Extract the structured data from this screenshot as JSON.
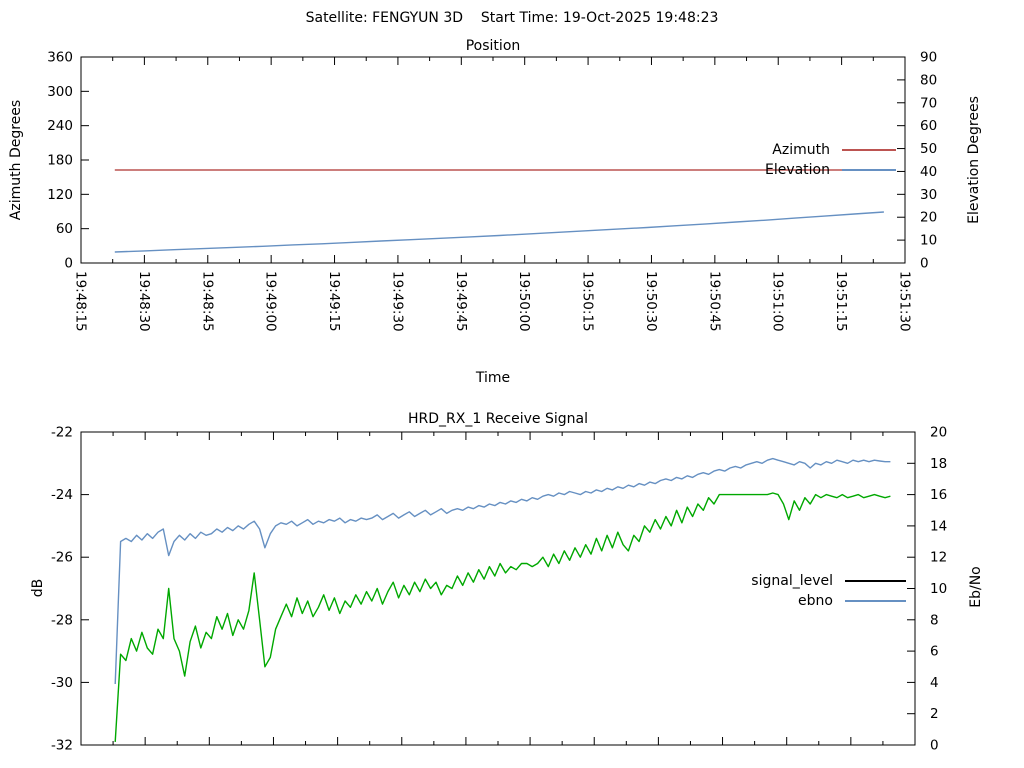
{
  "header": {
    "title": "Satellite: FENGYUN 3D    Start Time: 19-Oct-2025 19:48:23"
  },
  "colors": {
    "background": "#ffffff",
    "frame": "#000000",
    "azimuth_red": "#bc5451",
    "elevation_blue": "#6690c2",
    "signal_green": "#00a800",
    "legend_black": "#000000"
  },
  "chart_data": [
    {
      "type": "line",
      "title": "Position",
      "xlabel": "Time",
      "ylabel_left": "Azimuth Degrees",
      "ylabel_right": "Elevation Degrees",
      "x_range_seconds": [
        0,
        195
      ],
      "x_tick_interval_seconds": 15,
      "x_ticks": [
        "19:48:15",
        "19:48:30",
        "19:48:45",
        "19:49:00",
        "19:49:15",
        "19:49:30",
        "19:49:45",
        "19:50:00",
        "19:50:15",
        "19:50:30",
        "19:50:45",
        "19:51:00",
        "19:51:15",
        "19:51:30"
      ],
      "x_tick_labels_visible": true,
      "ylim_left": [
        0,
        360
      ],
      "yticks_left": [
        0,
        60,
        120,
        180,
        240,
        300,
        360
      ],
      "ylim_right": [
        0,
        90
      ],
      "yticks_right": [
        0,
        10,
        20,
        30,
        40,
        50,
        60,
        70,
        80,
        90
      ],
      "grid": false,
      "legend_position": "inside-right",
      "legend": [
        {
          "label": "Azimuth",
          "color": "#bc5451"
        },
        {
          "label": "Elevation",
          "color": "#6690c2"
        }
      ],
      "series": [
        {
          "name": "Azimuth",
          "axis": "left",
          "color": "#bc5451",
          "points": [
            [
              8,
              162.5
            ],
            [
              189.5,
              162.5
            ]
          ]
        },
        {
          "name": "Elevation",
          "axis": "right",
          "color": "#6690c2",
          "t0": 8,
          "dt": 7,
          "values": [
            4.8,
            5.3,
            5.8,
            6.3,
            6.8,
            7.3,
            7.9,
            8.4,
            9.0,
            9.6,
            10.2,
            10.8,
            11.4,
            12.0,
            12.7,
            13.4,
            14.1,
            14.8,
            15.5,
            16.3,
            17.1,
            17.9,
            18.7,
            19.6,
            20.5,
            21.4,
            22.3
          ]
        }
      ]
    },
    {
      "type": "line",
      "title": "HRD_RX_1 Receive Signal",
      "xlabel": "",
      "ylabel_left": "dB",
      "ylabel_right": "Eb/No",
      "x_range_seconds": [
        0,
        195
      ],
      "x_tick_interval_seconds": 15,
      "x_ticks": [
        "19:48:15",
        "19:48:30",
        "19:48:45",
        "19:49:00",
        "19:49:15",
        "19:49:30",
        "19:49:45",
        "19:50:00",
        "19:50:15",
        "19:50:30",
        "19:50:45",
        "19:51:00",
        "19:51:15",
        "19:51:30"
      ],
      "x_tick_labels_visible": false,
      "ylim_left": [
        -32,
        -22
      ],
      "yticks_left": [
        -22,
        -24,
        -26,
        -28,
        -30,
        -32
      ],
      "ylim_right": [
        0,
        20
      ],
      "yticks_right": [
        0,
        2,
        4,
        6,
        8,
        10,
        12,
        14,
        16,
        18,
        20
      ],
      "grid": false,
      "legend_position": "inside-right",
      "legend": [
        {
          "label": "signal_level",
          "color": "#000000"
        },
        {
          "label": "ebno",
          "color": "#6690c2"
        }
      ],
      "series": [
        {
          "name": "signal_level",
          "axis": "left",
          "color": "#00a800",
          "t0": 8,
          "dt": 1.25,
          "values": [
            -31.9,
            -29.1,
            -29.3,
            -28.6,
            -29.0,
            -28.4,
            -28.9,
            -29.1,
            -28.3,
            -28.6,
            -27.0,
            -28.6,
            -29.0,
            -29.8,
            -28.7,
            -28.2,
            -28.9,
            -28.4,
            -28.6,
            -27.9,
            -28.3,
            -27.8,
            -28.5,
            -28.0,
            -28.3,
            -27.7,
            -26.5,
            -28.0,
            -29.5,
            -29.2,
            -28.3,
            -27.9,
            -27.5,
            -27.9,
            -27.3,
            -27.8,
            -27.4,
            -27.9,
            -27.6,
            -27.2,
            -27.7,
            -27.3,
            -27.8,
            -27.4,
            -27.6,
            -27.2,
            -27.5,
            -27.1,
            -27.4,
            -27.0,
            -27.5,
            -27.1,
            -26.8,
            -27.3,
            -26.9,
            -27.2,
            -26.8,
            -27.1,
            -26.7,
            -27.0,
            -26.8,
            -27.2,
            -26.9,
            -27.0,
            -26.6,
            -26.9,
            -26.5,
            -26.8,
            -26.4,
            -26.7,
            -26.3,
            -26.6,
            -26.2,
            -26.5,
            -26.3,
            -26.4,
            -26.2,
            -26.2,
            -26.3,
            -26.2,
            -26.0,
            -26.3,
            -25.9,
            -26.2,
            -25.8,
            -26.1,
            -25.7,
            -26.0,
            -25.6,
            -25.9,
            -25.4,
            -25.8,
            -25.3,
            -25.7,
            -25.2,
            -25.6,
            -25.8,
            -25.3,
            -25.5,
            -25.0,
            -25.2,
            -24.8,
            -25.1,
            -24.7,
            -25.0,
            -24.5,
            -24.9,
            -24.4,
            -24.7,
            -24.3,
            -24.5,
            -24.1,
            -24.3,
            -24.0,
            -24.0,
            -24.0,
            -24.0,
            -24.0,
            -24.0,
            -24.0,
            -24.0,
            -24.0,
            -24.0,
            -23.95,
            -24.0,
            -24.3,
            -24.8,
            -24.2,
            -24.5,
            -24.1,
            -24.3,
            -24.0,
            -24.1,
            -24.0,
            -24.05,
            -24.1,
            -24.0,
            -24.1,
            -24.05,
            -24.0,
            -24.1,
            -24.05,
            -24.0,
            -24.05,
            -24.1,
            -24.05
          ]
        },
        {
          "name": "ebno",
          "axis": "right",
          "color": "#6690c2",
          "t0": 8,
          "dt": 1.25,
          "values": [
            3.9,
            13.0,
            13.2,
            13.0,
            13.4,
            13.1,
            13.5,
            13.2,
            13.6,
            13.8,
            12.1,
            13.0,
            13.4,
            13.1,
            13.5,
            13.2,
            13.6,
            13.4,
            13.5,
            13.8,
            13.6,
            13.9,
            13.7,
            14.0,
            13.8,
            14.1,
            14.3,
            13.8,
            12.6,
            13.5,
            14.0,
            14.2,
            14.1,
            14.3,
            14.0,
            14.2,
            14.4,
            14.1,
            14.3,
            14.2,
            14.4,
            14.3,
            14.5,
            14.2,
            14.4,
            14.3,
            14.5,
            14.4,
            14.5,
            14.7,
            14.4,
            14.6,
            14.8,
            14.5,
            14.7,
            14.9,
            14.6,
            14.8,
            15.0,
            14.7,
            14.9,
            15.1,
            14.8,
            15.0,
            15.1,
            15.0,
            15.2,
            15.1,
            15.3,
            15.2,
            15.4,
            15.3,
            15.5,
            15.4,
            15.6,
            15.5,
            15.7,
            15.6,
            15.8,
            15.7,
            15.9,
            16.0,
            15.9,
            16.1,
            16.0,
            16.2,
            16.1,
            16.0,
            16.2,
            16.1,
            16.3,
            16.2,
            16.4,
            16.3,
            16.5,
            16.4,
            16.6,
            16.5,
            16.7,
            16.6,
            16.8,
            16.7,
            16.9,
            17.0,
            16.9,
            17.1,
            17.0,
            17.2,
            17.1,
            17.3,
            17.4,
            17.3,
            17.5,
            17.6,
            17.5,
            17.7,
            17.8,
            17.7,
            17.9,
            18.0,
            18.1,
            18.0,
            18.2,
            18.3,
            18.2,
            18.1,
            18.0,
            17.9,
            18.1,
            18.0,
            17.7,
            18.0,
            17.9,
            18.1,
            18.0,
            18.2,
            18.1,
            18.0,
            18.2,
            18.1,
            18.2,
            18.1,
            18.2,
            18.15,
            18.1,
            18.1
          ]
        }
      ]
    }
  ]
}
